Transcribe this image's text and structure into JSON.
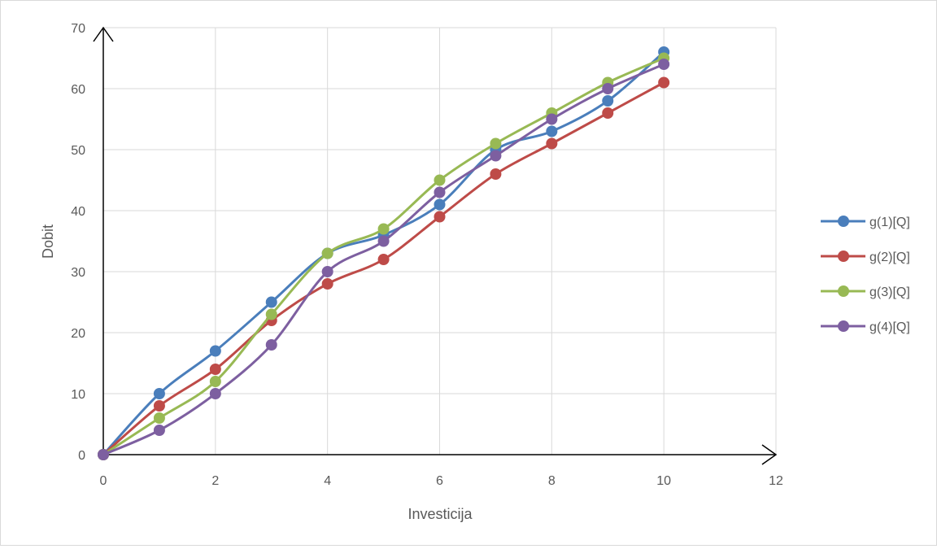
{
  "chart_data": {
    "type": "line",
    "title": "",
    "xlabel": "Investicija",
    "ylabel": "Dobit",
    "xlim": [
      0,
      12
    ],
    "ylim": [
      0,
      70
    ],
    "xticks": [
      0,
      2,
      4,
      6,
      8,
      10,
      12
    ],
    "yticks": [
      0,
      10,
      20,
      30,
      40,
      50,
      60,
      70
    ],
    "grid": true,
    "legend_position": "right",
    "smoothed": true,
    "markers": "circle",
    "x": [
      0,
      1,
      2,
      3,
      4,
      5,
      6,
      7,
      8,
      9,
      10
    ],
    "series": [
      {
        "name": "g(1)[Q]",
        "color": "#4a7ebb",
        "values": [
          0,
          10,
          17,
          25,
          33,
          36,
          41,
          50,
          53,
          58,
          66
        ]
      },
      {
        "name": "g(2)[Q]",
        "color": "#be4b48",
        "values": [
          0,
          8,
          14,
          22,
          28,
          32,
          39,
          46,
          51,
          56,
          61
        ]
      },
      {
        "name": "g(3)[Q]",
        "color": "#98b954",
        "values": [
          0,
          6,
          12,
          23,
          33,
          37,
          45,
          51,
          56,
          61,
          65
        ]
      },
      {
        "name": "g(4)[Q]",
        "color": "#7d5fa0",
        "values": [
          0,
          4,
          10,
          18,
          30,
          35,
          43,
          49,
          55,
          60,
          64
        ]
      }
    ]
  }
}
